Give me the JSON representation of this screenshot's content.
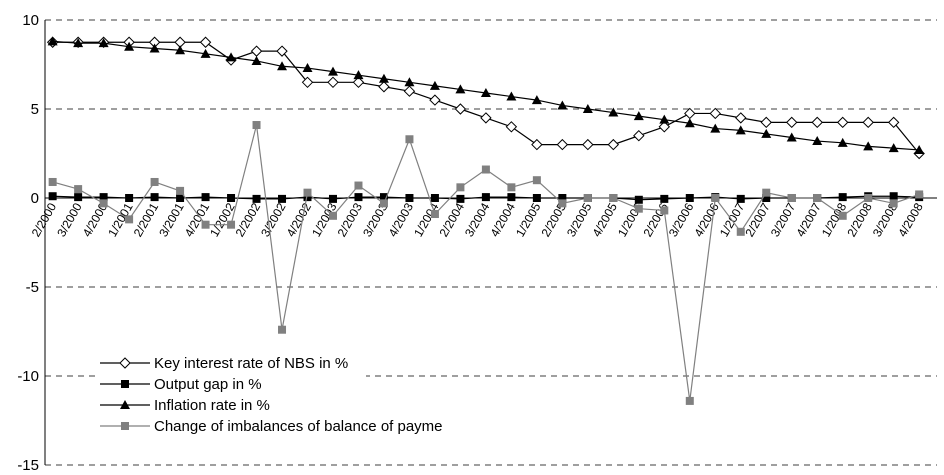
{
  "chart_data": {
    "type": "line",
    "categories": [
      "2/2000",
      "3/2000",
      "4/2000",
      "1/2001",
      "2/2001",
      "3/2001",
      "4/2001",
      "1/2002",
      "2/2002",
      "3/2002",
      "4/2002",
      "1/2003",
      "2/2003",
      "3/2003",
      "4/2003",
      "1/2004",
      "2/2004",
      "3/2004",
      "4/2004",
      "1/2005",
      "2/2005",
      "3/2005",
      "4/2005",
      "1/2006",
      "2/2006",
      "3/2006",
      "4/2006",
      "1/2007",
      "2/2007",
      "3/2007",
      "4/2007",
      "1/2008",
      "2/2008",
      "3/2008",
      "4/2008"
    ],
    "series": [
      {
        "name": "Key interest rate of NBS in %",
        "color": "#000000",
        "marker": "diamond",
        "values": [
          8.75,
          8.75,
          8.75,
          8.75,
          8.75,
          8.75,
          8.75,
          7.75,
          8.25,
          8.25,
          6.5,
          6.5,
          6.5,
          6.25,
          6.0,
          5.5,
          5.0,
          4.5,
          4.0,
          3.0,
          3.0,
          3.0,
          3.0,
          3.5,
          4.0,
          4.75,
          4.75,
          4.5,
          4.25,
          4.25,
          4.25,
          4.25,
          4.25,
          4.25,
          2.5
        ]
      },
      {
        "name": "Output gap in %",
        "color": "#000000",
        "marker": "square",
        "values": [
          0.1,
          0.05,
          0.05,
          0,
          0.05,
          0,
          0.05,
          0,
          -0.05,
          -0.05,
          0.05,
          -0.05,
          0.05,
          0.05,
          0,
          0,
          -0.05,
          0.05,
          0.05,
          0,
          0,
          0,
          0,
          -0.1,
          -0.05,
          0,
          0.05,
          -0.05,
          0,
          0,
          0,
          0.05,
          0.1,
          0.1,
          0.05
        ]
      },
      {
        "name": "Inflation rate in %",
        "color": "#000000",
        "marker": "triangle",
        "values": [
          8.8,
          8.7,
          8.7,
          8.5,
          8.4,
          8.3,
          8.1,
          7.9,
          7.7,
          7.4,
          7.3,
          7.1,
          6.9,
          6.7,
          6.5,
          6.3,
          6.1,
          5.9,
          5.7,
          5.5,
          5.2,
          5.0,
          4.8,
          4.6,
          4.4,
          4.2,
          3.9,
          3.8,
          3.6,
          3.4,
          3.2,
          3.1,
          2.9,
          2.8,
          2.7
        ]
      },
      {
        "name": "Change of imbalances of balance of payme",
        "color": "#808080",
        "marker": "square",
        "values": [
          0.9,
          0.5,
          -0.3,
          -1.2,
          0.9,
          0.4,
          -1.5,
          -1.5,
          4.1,
          -7.4,
          0.3,
          -1.0,
          0.7,
          -0.3,
          3.3,
          -0.9,
          0.6,
          1.6,
          0.6,
          1.0,
          -0.3,
          0.0,
          0.0,
          -0.6,
          -0.7,
          -11.4,
          0.0,
          -1.9,
          0.3,
          0.0,
          0.0,
          -1.0,
          0.0,
          -0.3,
          0.2
        ]
      }
    ],
    "ylim": [
      -15,
      10
    ],
    "yticks": [
      10,
      5,
      0,
      -5,
      -10,
      -15
    ],
    "grid": true
  }
}
